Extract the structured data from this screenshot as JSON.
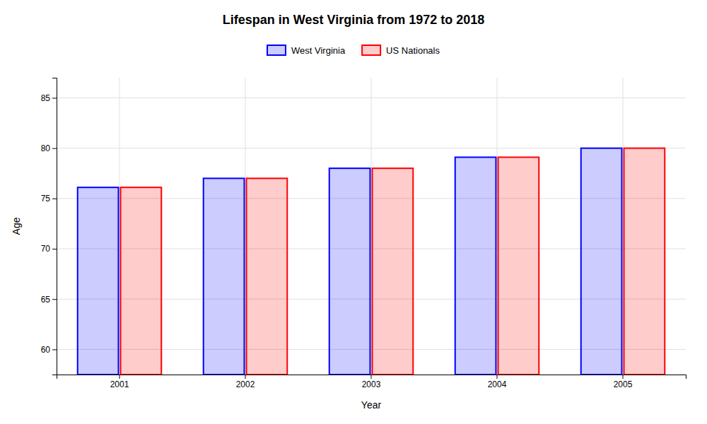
{
  "chart_data": {
    "type": "bar",
    "title": "Lifespan in West Virginia from 1972 to 2018",
    "x_label": "Year",
    "y_label": "Age",
    "categories": [
      "2001",
      "2002",
      "2003",
      "2004",
      "2005"
    ],
    "series": [
      {
        "name": "West Virginia",
        "color": "#0000ff",
        "values": [
          76.1,
          77.0,
          78.0,
          79.1,
          80.0
        ]
      },
      {
        "name": "US Nationals",
        "color": "#ff0000",
        "values": [
          76.1,
          77.0,
          78.0,
          79.1,
          80.0
        ]
      }
    ],
    "ylim": [
      57.5,
      87
    ],
    "yticks": [
      60,
      65,
      70,
      75,
      80,
      85
    ],
    "grid": true,
    "legend": "top"
  }
}
